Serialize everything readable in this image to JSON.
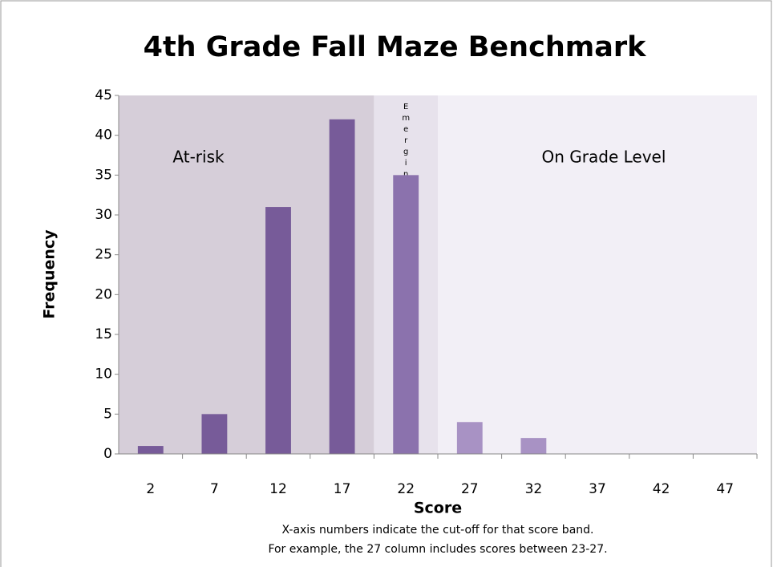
{
  "chart_data": {
    "type": "bar",
    "title": "4th Grade Fall Maze Benchmark",
    "x_label": "Score",
    "y_label": "Frequency",
    "notes": [
      "X-axis numbers indicate the cut-off for that score band.",
      "For example, the 27 column includes scores between 23-27."
    ],
    "regions": [
      "At-risk",
      "Emerging",
      "On Grade Level"
    ],
    "categories": [
      "2",
      "7",
      "12",
      "17",
      "22",
      "27",
      "32",
      "37",
      "42",
      "47"
    ],
    "values": [
      1,
      5,
      31,
      42,
      35,
      4,
      2,
      0,
      0,
      0
    ],
    "colors": [
      "#775b99",
      "#775b99",
      "#775b99",
      "#775b99",
      "#8b72ad",
      "#a892c4",
      "#a892c4",
      "#a892c4",
      "#a892c4",
      "#a892c4"
    ],
    "ylim": [
      0,
      45
    ],
    "yticks": [
      0,
      5,
      10,
      15,
      20,
      25,
      30,
      35,
      40,
      45
    ],
    "grid": false
  }
}
